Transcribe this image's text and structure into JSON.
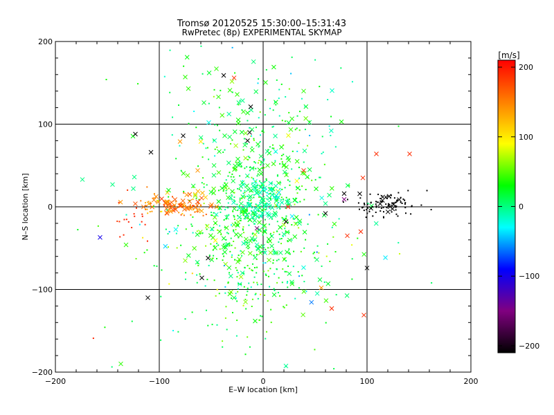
{
  "chart_data": [
    {
      "type": "scatter",
      "title": "Tromsø 20120525 15:30:00–15:31:43",
      "subtitle": "RwPretec (8p) EXPERIMENTAL SKYMAP",
      "xlabel": "E–W location [km]",
      "ylabel": "N–S location [km]",
      "xlim": [
        -200,
        200
      ],
      "ylim": [
        -200,
        200
      ],
      "xticks": [
        -200,
        -100,
        0,
        100,
        200
      ],
      "yticks": [
        -200,
        -100,
        0,
        100,
        200
      ],
      "xtick_labels": [
        "−200",
        "−100",
        "0",
        "100",
        "200"
      ],
      "ytick_labels": [
        "−200",
        "−100",
        "0",
        "100",
        "200"
      ],
      "grid": true,
      "grid_lines": [
        -100,
        0,
        100
      ],
      "marker_types": [
        "dot",
        "x"
      ],
      "colormap": "rainbow (black–purple–blue–cyan–green–yellow–red)",
      "color_value_range": [
        -200,
        200
      ],
      "crosses": [
        [
          -45,
          167,
          40
        ],
        [
          -28,
          156,
          190
        ],
        [
          -38,
          159,
          -210
        ],
        [
          -75,
          157,
          40
        ],
        [
          -72,
          143,
          40
        ],
        [
          -32,
          141,
          40
        ],
        [
          -25,
          136,
          40
        ],
        [
          -43,
          133,
          40
        ],
        [
          39,
          140,
          40
        ],
        [
          -57,
          126,
          20
        ],
        [
          -12,
          121,
          -210
        ],
        [
          -19,
          115,
          40
        ],
        [
          -123,
          88,
          -210
        ],
        [
          -77,
          86,
          -210
        ],
        [
          -108,
          66,
          -210
        ],
        [
          -13,
          90,
          -210
        ],
        [
          -15,
          80,
          -210
        ],
        [
          -80,
          79,
          140
        ],
        [
          -60,
          79,
          100
        ],
        [
          109,
          64,
          190
        ],
        [
          141,
          64,
          190
        ],
        [
          -63,
          44,
          140
        ],
        [
          39,
          44,
          190
        ],
        [
          96,
          35,
          190
        ],
        [
          -174,
          33,
          0
        ],
        [
          -145,
          27,
          0
        ],
        [
          -124,
          36,
          0
        ],
        [
          -125,
          22,
          0
        ],
        [
          78,
          16,
          -210
        ],
        [
          78,
          9,
          -150
        ],
        [
          60,
          4,
          0
        ],
        [
          -13,
          11,
          0
        ],
        [
          22,
          -18,
          -210
        ],
        [
          60,
          -8,
          -210
        ],
        [
          94,
          -30,
          190
        ],
        [
          81,
          -35,
          190
        ],
        [
          -6,
          -26,
          -150
        ],
        [
          -157,
          -37,
          -100
        ],
        [
          -132,
          -46,
          40
        ],
        [
          -75,
          -65,
          60
        ],
        [
          -53,
          -62,
          -210
        ],
        [
          -59,
          -86,
          -210
        ],
        [
          100,
          -74,
          -210
        ],
        [
          56,
          -98,
          140
        ],
        [
          -111,
          -110,
          -210
        ],
        [
          66,
          -123,
          190
        ],
        [
          97,
          -131,
          190
        ],
        [
          -137,
          -190,
          40
        ],
        [
          -28,
          -110,
          20
        ],
        [
          -31,
          -103,
          60
        ],
        [
          -20,
          -80,
          0
        ],
        [
          10,
          52,
          40
        ],
        [
          -37,
          86,
          20
        ],
        [
          4,
          67,
          0
        ],
        [
          -27,
          46,
          40
        ],
        [
          -2,
          24,
          0
        ],
        [
          -13,
          2,
          -20
        ],
        [
          12,
          -9,
          0
        ],
        [
          35,
          -20,
          0
        ],
        [
          -5,
          -50,
          0
        ],
        [
          20,
          -33,
          0
        ],
        [
          -42,
          -30,
          40
        ],
        [
          24,
          0,
          190
        ]
      ],
      "clusters": [
        {
          "center": [
            -7,
            22
          ],
          "spread": [
            34,
            55
          ],
          "count": 420,
          "color_value": 25,
          "color_jitter": 20,
          "cross_fraction": 0.4
        },
        {
          "center": [
            -22,
            -40
          ],
          "spread": [
            22,
            36
          ],
          "count": 140,
          "color_value": 30,
          "color_jitter": 20,
          "cross_fraction": 0.3
        },
        {
          "center": [
            0,
            8
          ],
          "spread": [
            14,
            14
          ],
          "count": 130,
          "color_value": -10,
          "color_jitter": 12,
          "cross_fraction": 0.4
        },
        {
          "center": [
            -6,
            -75
          ],
          "spread": [
            40,
            55
          ],
          "count": 180,
          "color_value": 15,
          "color_jitter": 25,
          "cross_fraction": 0.05
        },
        {
          "center": [
            -85,
            2
          ],
          "spread": [
            20,
            7
          ],
          "count": 110,
          "color_value": 150,
          "color_jitter": 20,
          "cross_fraction": 0.45
        },
        {
          "center": [
            -125,
            -15
          ],
          "spread": [
            12,
            14
          ],
          "count": 18,
          "color_value": 190,
          "color_jitter": 5,
          "cross_fraction": 0.05
        },
        {
          "center": [
            118,
            4
          ],
          "spread": [
            16,
            9
          ],
          "count": 95,
          "color_value": -210,
          "color_jitter": 0,
          "cross_fraction": 0.1
        },
        {
          "center": [
            -5,
            120
          ],
          "spread": [
            55,
            40
          ],
          "count": 70,
          "color_value": 0,
          "color_jitter": 20,
          "cross_fraction": 0.1
        },
        {
          "center": [
            60,
            -60
          ],
          "spread": [
            50,
            50
          ],
          "count": 35,
          "color_value": 10,
          "color_jitter": 40,
          "cross_fraction": 0.1
        },
        {
          "center": [
            -90,
            -60
          ],
          "spread": [
            35,
            50
          ],
          "count": 40,
          "color_value": 50,
          "color_jitter": 40,
          "cross_fraction": 0.1
        }
      ]
    },
    {
      "type": "heatmap",
      "title": "[m/s]",
      "ylim": [
        -210,
        210
      ],
      "yticks": [
        200,
        100,
        0,
        -100,
        -200
      ],
      "ytick_labels": [
        "200",
        "100",
        "0",
        "−100",
        "−200"
      ],
      "colors": [
        "#ff0000",
        "#ff8000",
        "#ffff00",
        "#00ff00",
        "#00ffff",
        "#0000ff",
        "#800080",
        "#000000"
      ]
    }
  ]
}
